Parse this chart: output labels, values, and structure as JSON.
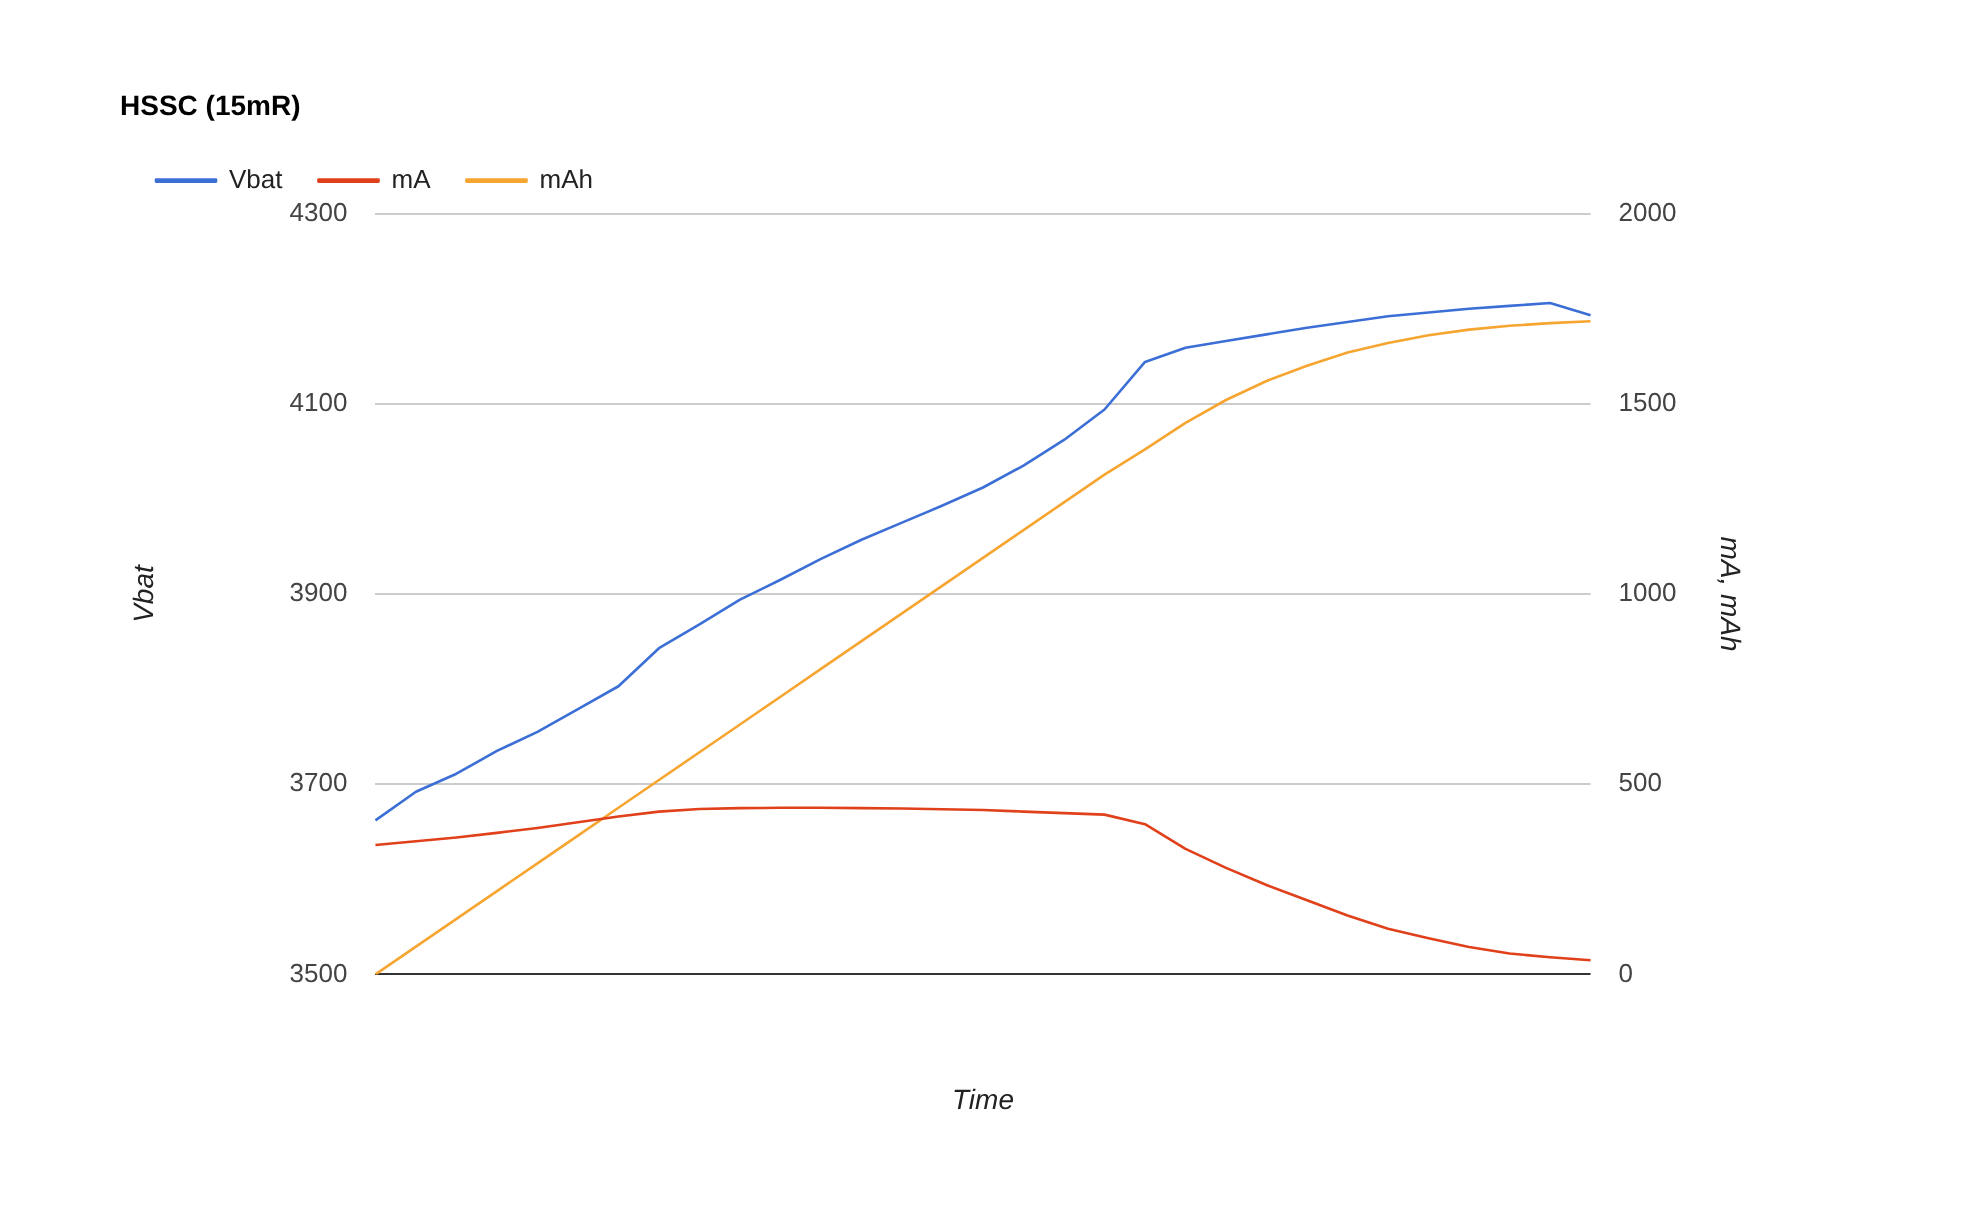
{
  "chart_data": {
    "type": "line",
    "title": "HSSC (15mR)",
    "xlabel": "Time",
    "ylabel": "Vbat",
    "y2label": "mA, mAh",
    "categories": [
      null,
      null,
      null,
      null,
      null,
      null,
      null,
      null,
      null,
      null,
      null,
      null,
      null,
      null,
      null,
      null,
      null,
      null,
      null,
      null,
      null,
      null,
      null,
      null,
      null,
      null,
      null,
      null,
      null,
      null,
      null
    ],
    "series": [
      {
        "name": "Vbat",
        "color": "#3c6fd6",
        "values": [
          3662,
          3692,
          3711,
          3735,
          3755,
          3779,
          3803,
          3843,
          3868,
          3894,
          3915,
          3937,
          3957,
          3975,
          3993,
          4012,
          4035,
          4062,
          4094,
          4144,
          4159,
          4166,
          4173,
          4180,
          4186,
          4192,
          4196,
          4200,
          4203,
          4206,
          4193
        ]
      },
      {
        "name": "mA",
        "color": "#e0401a",
        "axis": "y2",
        "values": [
          340,
          350,
          360,
          372,
          385,
          400,
          415,
          428,
          435,
          437,
          438,
          438,
          437,
          436,
          434,
          432,
          428,
          424,
          420,
          395,
          330,
          280,
          235,
          195,
          155,
          120,
          95,
          72,
          55,
          45,
          37
        ]
      },
      {
        "name": "mAh",
        "color": "#f7a531",
        "axis": "y2",
        "values": [
          0,
          73,
          146,
          219,
          292,
          365,
          438,
          511,
          584,
          657,
          730,
          803,
          876,
          949,
          1022,
          1095,
          1168,
          1241,
          1314,
          1380,
          1450,
          1510,
          1560,
          1600,
          1635,
          1660,
          1680,
          1695,
          1705,
          1712,
          1717
        ]
      }
    ],
    "ylim": [
      3500,
      4300
    ],
    "yticks": [
      3500,
      3700,
      3900,
      4100,
      4300
    ],
    "y2lim": [
      0,
      2000
    ],
    "y2ticks": [
      0,
      500,
      1000,
      1500,
      2000
    ],
    "tick_labels": "y",
    "grid": "y",
    "legend": "top left",
    "marker": "none",
    "line_style": "solid"
  }
}
